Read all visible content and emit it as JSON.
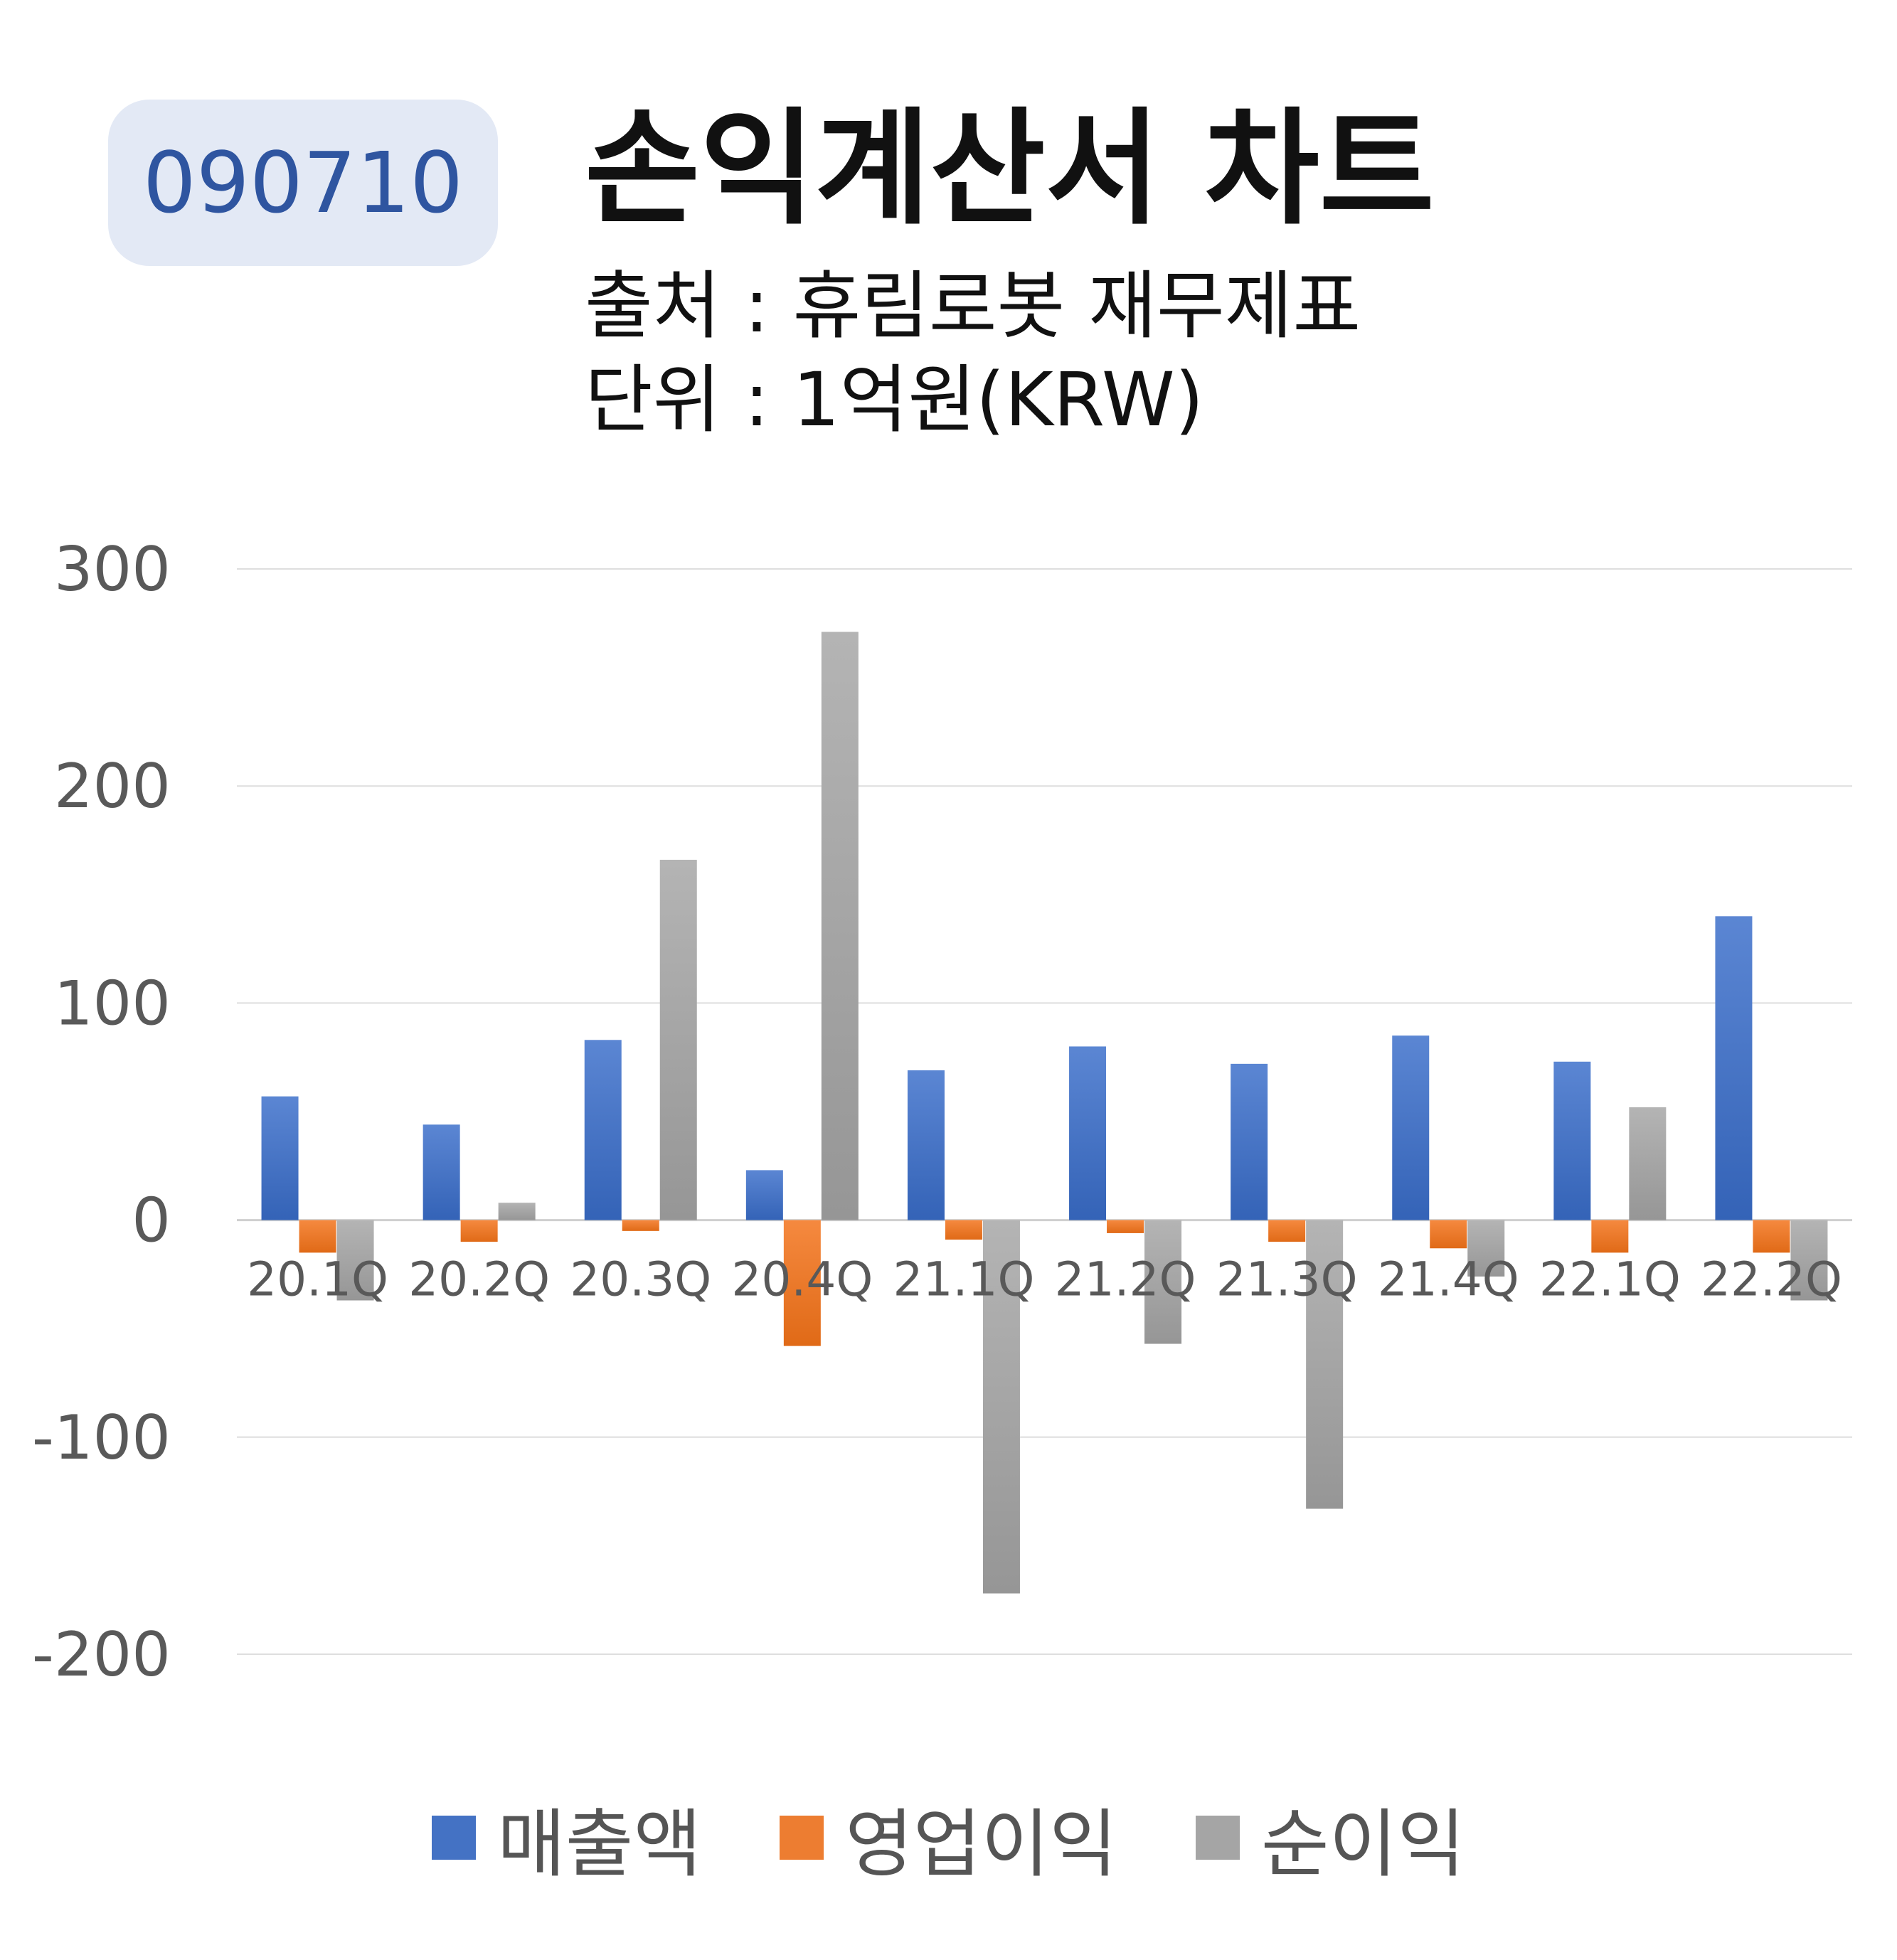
{
  "badge": {
    "code": "090710"
  },
  "header": {
    "title": "손익계산서 차트",
    "source": "출처 : 휴림로봇 재무제표",
    "unit": "단위 : 1억원(KRW)"
  },
  "chart_data": {
    "type": "bar",
    "categories": [
      "20.1Q",
      "20.2Q",
      "20.3Q",
      "20.4Q",
      "21.1Q",
      "21.2Q",
      "21.3Q",
      "21.4Q",
      "22.1Q",
      "22.2Q"
    ],
    "series": [
      {
        "name": "매출액",
        "color": "#4472c4",
        "values": [
          57,
          44,
          83,
          23,
          69,
          80,
          72,
          85,
          73,
          140
        ]
      },
      {
        "name": "영업이익",
        "color": "#ed7d31",
        "values": [
          -15,
          -10,
          -5,
          -58,
          -9,
          -6,
          -10,
          -13,
          -15,
          -15
        ]
      },
      {
        "name": "순이익",
        "color": "#a5a5a5",
        "values": [
          -37,
          8,
          166,
          271,
          -172,
          -57,
          -133,
          -26,
          52,
          -37
        ]
      }
    ],
    "yticks": [
      300,
      200,
      100,
      0,
      -100,
      -200
    ],
    "ylim": [
      -200,
      300
    ],
    "grid": true,
    "legend_position": "bottom"
  }
}
